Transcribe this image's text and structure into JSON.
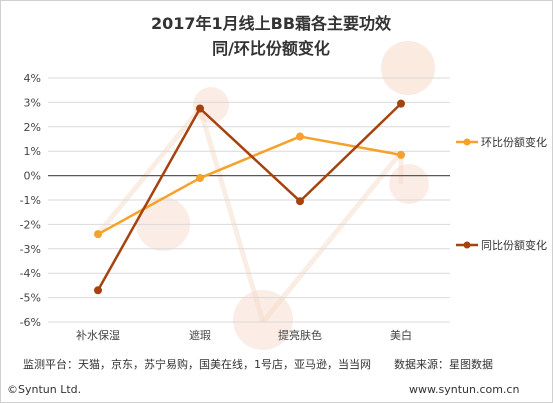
{
  "chart_data": {
    "type": "line",
    "title": [
      "2017年1月线上BB霜各主要功效",
      "同/环比份额变化"
    ],
    "categories": [
      "补水保湿",
      "遮瑕",
      "提亮肤色",
      "美白"
    ],
    "ylim": [
      -6,
      4
    ],
    "yticks": [
      "4%",
      "3%",
      "2%",
      "1%",
      "0%",
      "-1%",
      "-2%",
      "-3%",
      "-4%",
      "-5%",
      "-6%"
    ],
    "grid": true,
    "legend_position": "right",
    "series": [
      {
        "name": "环比份额变化",
        "values": [
          -2.4,
          -0.1,
          1.6,
          0.85
        ],
        "color": "#f5a12a"
      },
      {
        "name": "同比份额变化",
        "values": [
          -4.7,
          2.75,
          -1.05,
          2.95
        ],
        "color": "#a6420f"
      }
    ],
    "colors": {
      "grid": "#d9d9d9",
      "zero_line": "#595959",
      "watermark": "#f6d8c5"
    }
  },
  "footer": {
    "platforms": "监测平台：天猫，京东，苏宁易购，国美在线，1号店，亚马逊，当当网",
    "source": "数据来源：星图数据",
    "copyright": "©Syntun Ltd.",
    "website": "www.syntun.com.cn"
  }
}
